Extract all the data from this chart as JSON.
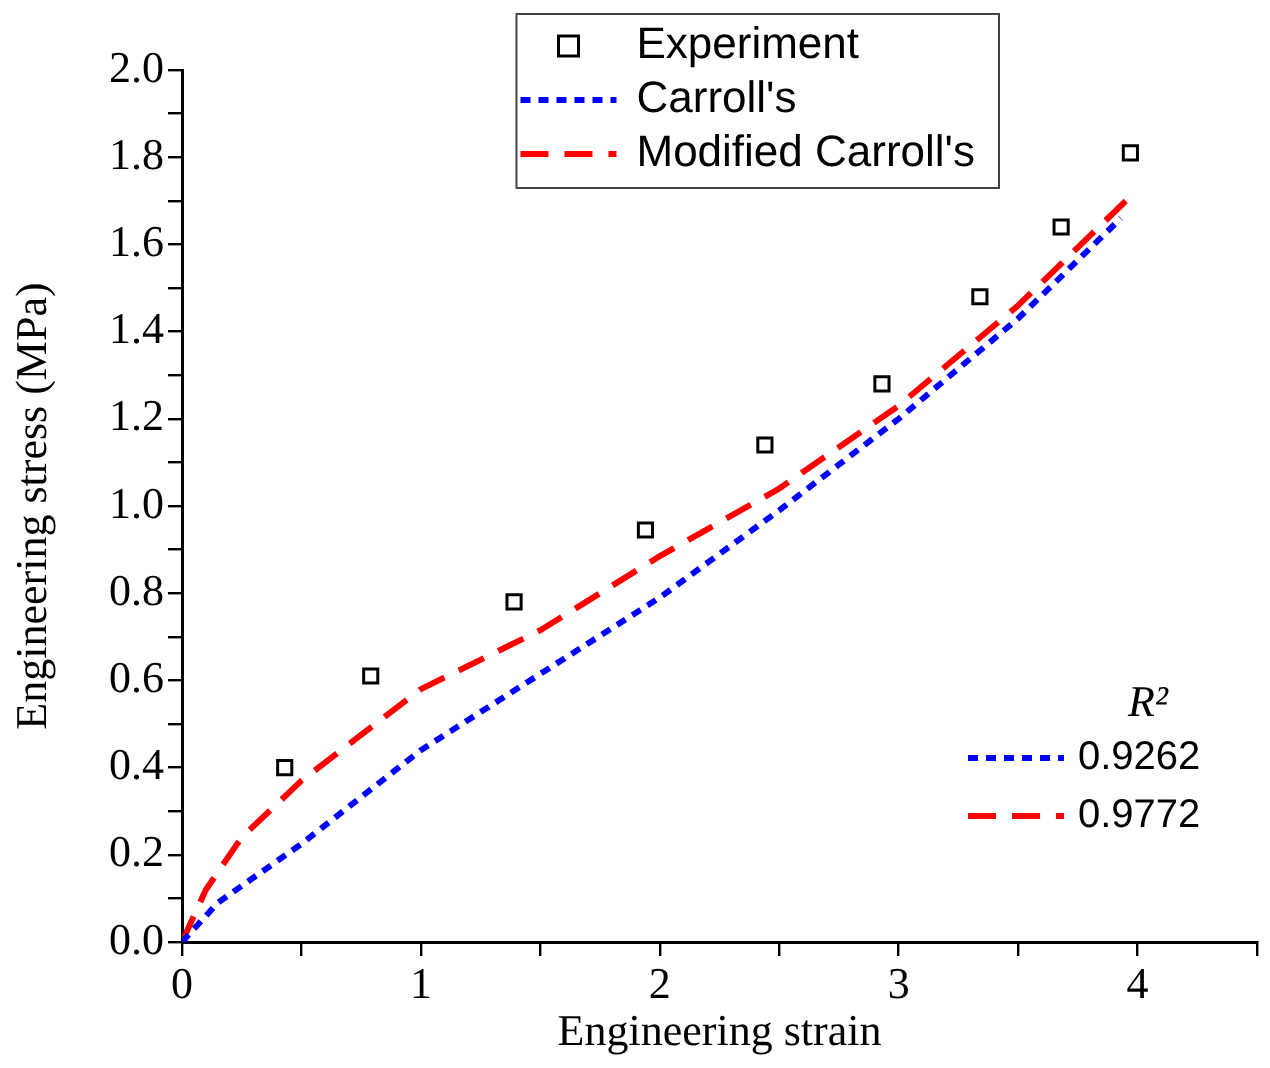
{
  "chart_data": {
    "type": "line",
    "xlabel": "Engineering strain",
    "ylabel": "Engineering stress (MPa)",
    "xlim": [
      0,
      4.5
    ],
    "xticks": [
      0,
      {
        "value": 0.5,
        "label": null
      },
      1,
      {
        "value": 1.5,
        "label": null
      },
      2,
      {
        "value": 2.5,
        "label": null
      },
      3,
      {
        "value": 3.5,
        "label": null
      },
      4,
      {
        "value": 4.5,
        "label": null
      }
    ],
    "ylim": [
      0,
      2
    ],
    "yticks": [
      {
        "value": 0,
        "label": "0.0"
      },
      {
        "value": 0.1,
        "label": null
      },
      {
        "value": 0.2,
        "label": "0.2"
      },
      {
        "value": 0.3,
        "label": null
      },
      {
        "value": 0.4,
        "label": "0.4"
      },
      {
        "value": 0.5,
        "label": null
      },
      {
        "value": 0.6,
        "label": "0.6"
      },
      {
        "value": 0.7,
        "label": null
      },
      {
        "value": 0.8,
        "label": "0.8"
      },
      {
        "value": 0.9,
        "label": null
      },
      {
        "value": 1,
        "label": "1.0"
      },
      {
        "value": 1.1,
        "label": null
      },
      {
        "value": 1.2,
        "label": "1.2"
      },
      {
        "value": 1.3,
        "label": null
      },
      {
        "value": 1.4,
        "label": "1.4"
      },
      {
        "value": 1.5,
        "label": null
      },
      {
        "value": 1.6,
        "label": "1.6"
      },
      {
        "value": 1.7,
        "label": null
      },
      {
        "value": 1.8,
        "label": "1.8"
      },
      {
        "value": 1.9,
        "label": null
      },
      {
        "value": 2,
        "label": "2.0"
      }
    ],
    "grid": false,
    "legend": "top right",
    "series": [
      {
        "name": "Experiment",
        "type": "scatter",
        "marker": "square",
        "color": "#000000",
        "x": [
          0.43,
          0.79,
          1.39,
          1.94,
          2.44,
          2.93,
          3.34,
          3.68,
          3.97
        ],
        "values": [
          0.4,
          0.61,
          0.78,
          0.945,
          1.14,
          1.28,
          1.48,
          1.64,
          1.81
        ]
      },
      {
        "name": "Carroll's",
        "line_style": "dotted",
        "marker": "none",
        "color": "#0000ff",
        "x": [
          0,
          0.15,
          0.5,
          1,
          1.5,
          2,
          2.5,
          3,
          3.5,
          3.93
        ],
        "values": [
          0,
          0.09,
          0.225,
          0.44,
          0.615,
          0.79,
          0.99,
          1.2,
          1.43,
          1.66
        ]
      },
      {
        "name": "Modified Carroll's",
        "line_style": "dashed",
        "marker": "none",
        "color": "#ff0000",
        "x": [
          0,
          0.1,
          0.25,
          0.5,
          1,
          1.5,
          2,
          2.5,
          3,
          3.5,
          3.97
        ],
        "values": [
          0,
          0.12,
          0.24,
          0.37,
          0.58,
          0.715,
          0.885,
          1.04,
          1.23,
          1.46,
          1.71
        ]
      }
    ],
    "annotations": [
      "R²",
      "0.9262",
      "0.9772"
    ]
  }
}
